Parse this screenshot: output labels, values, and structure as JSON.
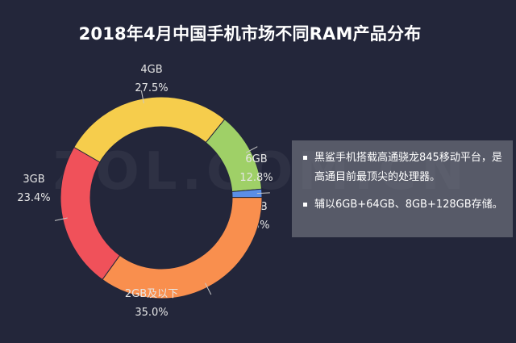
{
  "title": "2018年4月中国手机市场不同RAM产品分布",
  "watermark": "ZOL.COM.CN",
  "colors": {
    "background": "#23263a",
    "text": "#ffffff",
    "label": "#e6e6e6",
    "leader": "#c8c8c8"
  },
  "chart_data": {
    "type": "pie",
    "variant": "donut",
    "title": "2018年4月中国手机市场不同RAM产品分布",
    "categories": [
      "4GB",
      "6GB",
      "8GB",
      "2GB及以下",
      "3GB"
    ],
    "values": [
      27.5,
      12.8,
      1.3,
      35.0,
      23.4
    ],
    "value_labels": [
      "27.5%",
      "12.8%",
      "1.3%",
      "35.0%",
      "23.4%"
    ],
    "colors": [
      "#f6cd4c",
      "#9fd067",
      "#5b8ee6",
      "#f98f4e",
      "#f0515a"
    ],
    "legend": "none"
  },
  "note": {
    "items": [
      "黑鲨手机搭载高通骁龙845移动平台，是高通目前最顶尖的处理器。",
      "辅以6GB+64GB、8GB+128GB存储。"
    ]
  }
}
